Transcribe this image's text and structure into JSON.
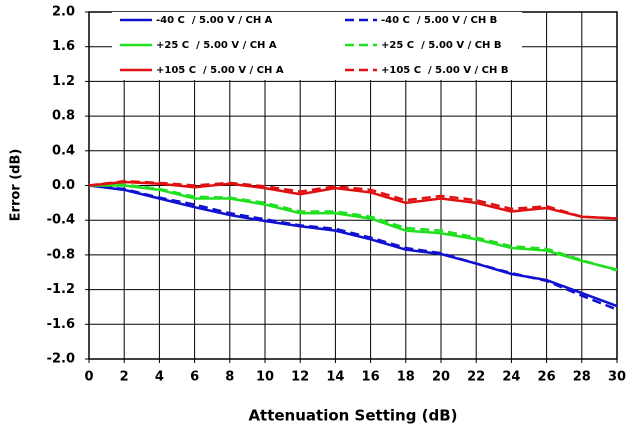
{
  "chart_data": {
    "type": "line",
    "xlabel": "Attenuation Setting (dB)",
    "ylabel": "Error (dB)",
    "x": [
      0,
      2,
      4,
      6,
      8,
      10,
      12,
      14,
      16,
      18,
      20,
      22,
      24,
      26,
      28,
      30
    ],
    "series": [
      {
        "name": "-40 C  / 5.00 V / CH A",
        "color": "#1010d0",
        "linestyle": "solid",
        "values": [
          0,
          -0.05,
          -0.15,
          -0.25,
          -0.34,
          -0.41,
          -0.47,
          -0.52,
          -0.62,
          -0.74,
          -0.79,
          -0.9,
          -1.02,
          -1.09,
          -1.24,
          -1.39
        ]
      },
      {
        "name": "-40 C  / 5.00 V / CH B",
        "color": "#1010d0",
        "linestyle": "dashed",
        "values": [
          0,
          -0.04,
          -0.14,
          -0.22,
          -0.32,
          -0.39,
          -0.46,
          -0.5,
          -0.6,
          -0.72,
          -0.78,
          -0.9,
          -1.01,
          -1.1,
          -1.27,
          -1.43
        ]
      },
      {
        "name": "+25 C  / 5.00 V / CH A",
        "color": "#20e020",
        "linestyle": "solid",
        "values": [
          0,
          0,
          -0.05,
          -0.15,
          -0.15,
          -0.22,
          -0.32,
          -0.32,
          -0.38,
          -0.52,
          -0.55,
          -0.62,
          -0.72,
          -0.75,
          -0.87,
          -0.97
        ]
      },
      {
        "name": "+25 C  / 5.00 V / CH B",
        "color": "#20e020",
        "linestyle": "dashed",
        "values": [
          0,
          0.01,
          -0.04,
          -0.13,
          -0.14,
          -0.2,
          -0.3,
          -0.3,
          -0.36,
          -0.49,
          -0.52,
          -0.6,
          -0.7,
          -0.73,
          -0.86,
          -0.98
        ]
      },
      {
        "name": "+105 C  / 5.00 V / CH A",
        "color": "#e01010",
        "linestyle": "solid",
        "values": [
          0,
          0.04,
          0.02,
          -0.02,
          0.02,
          -0.03,
          -0.1,
          -0.03,
          -0.08,
          -0.2,
          -0.15,
          -0.2,
          -0.3,
          -0.26,
          -0.36,
          -0.38
        ]
      },
      {
        "name": "+105 C  / 5.00 V / CH B",
        "color": "#e01010",
        "linestyle": "dashed",
        "values": [
          0,
          0.05,
          0.03,
          0,
          0.03,
          -0.01,
          -0.07,
          -0.01,
          -0.05,
          -0.17,
          -0.12,
          -0.17,
          -0.27,
          -0.24,
          -0.36,
          -0.38
        ]
      }
    ],
    "xlim": [
      0,
      30
    ],
    "xticks": [
      0,
      2,
      4,
      6,
      8,
      10,
      12,
      14,
      16,
      18,
      20,
      22,
      24,
      26,
      28,
      30
    ],
    "ylim": [
      -2,
      2
    ],
    "yticks": [
      {
        "value": -2,
        "label": "-2.0"
      },
      -1.6,
      -1.2,
      -0.8,
      -0.4,
      {
        "value": 0,
        "label": "0.0"
      },
      0.4,
      0.8,
      1.2,
      1.6,
      {
        "value": 2,
        "label": "2.0"
      }
    ],
    "grid": true,
    "legend": "upper"
  }
}
